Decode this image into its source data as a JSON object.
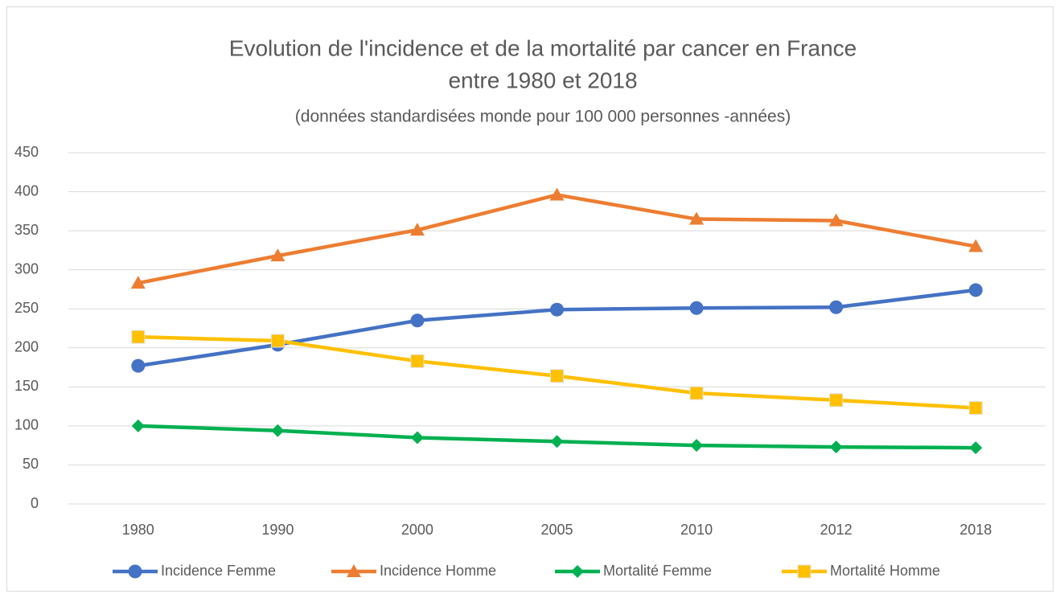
{
  "chart_data": {
    "type": "line",
    "title": [
      "Evolution de l'incidence et de la mortalité par cancer en France",
      "entre 1980 et 2018"
    ],
    "subtitle": "(données standardisées monde pour 100 000 personnes -années)",
    "categories": [
      "1980",
      "1990",
      "2000",
      "2005",
      "2010",
      "2012",
      "2018"
    ],
    "series": [
      {
        "name": "Incidence Femme",
        "color": "#4472c4",
        "marker": "circle",
        "values": [
          177,
          204,
          235,
          249,
          251,
          252,
          274
        ]
      },
      {
        "name": "Incidence Homme",
        "color": "#ed7d31",
        "marker": "triangle",
        "values": [
          283,
          318,
          351,
          396,
          365,
          363,
          330
        ]
      },
      {
        "name": "Mortalité Femme",
        "color": "#00b050",
        "marker": "diamond",
        "values": [
          100,
          94,
          85,
          80,
          75,
          73,
          72
        ]
      },
      {
        "name": "Mortalité Homme",
        "color": "#ffc000",
        "marker": "square",
        "values": [
          214,
          209,
          183,
          164,
          142,
          133,
          123
        ]
      }
    ],
    "ylim": [
      0,
      450
    ],
    "yticks": [
      0,
      50,
      100,
      150,
      200,
      250,
      300,
      350,
      400,
      450
    ],
    "grid": true,
    "legend": "bottom"
  }
}
